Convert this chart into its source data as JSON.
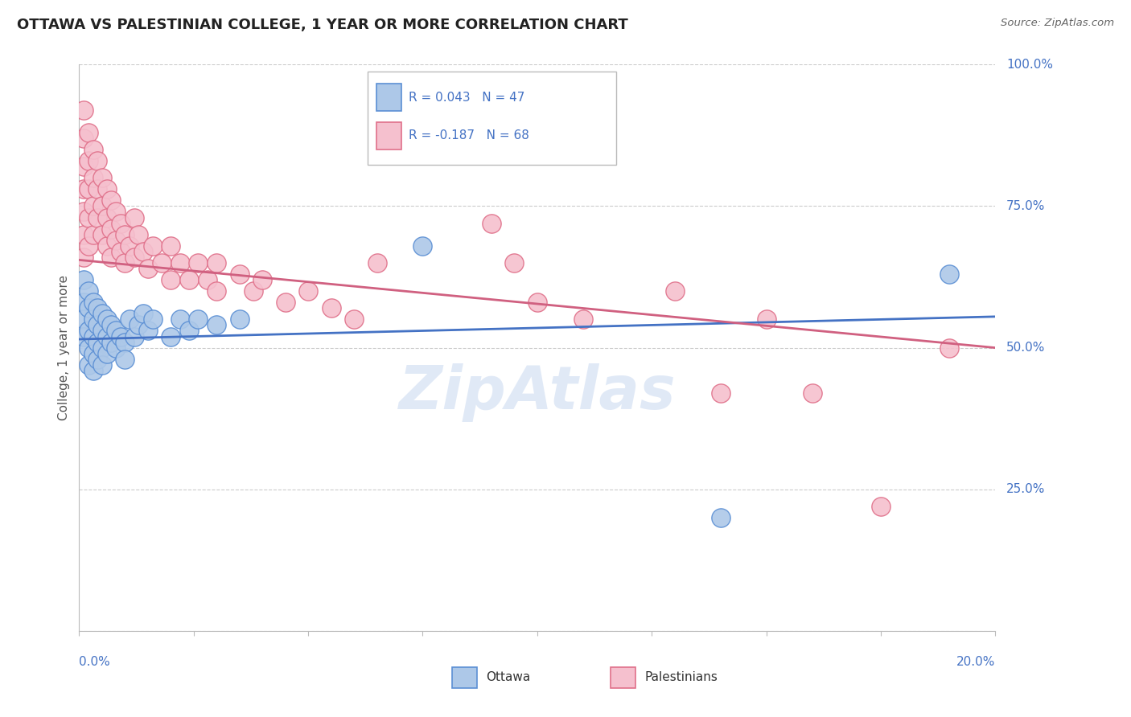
{
  "title": "OTTAWA VS PALESTINIAN COLLEGE, 1 YEAR OR MORE CORRELATION CHART",
  "source": "Source: ZipAtlas.com",
  "ylabel": "College, 1 year or more",
  "legend_ottawa": "Ottawa",
  "legend_palestinians": "Palestinians",
  "R_ottawa": 0.043,
  "N_ottawa": 47,
  "R_palestinians": -0.187,
  "N_palestinians": 68,
  "ottawa_color": "#adc8e8",
  "ottawa_edge_color": "#5b8fd4",
  "palestinian_color": "#f5c0ce",
  "palestinian_edge_color": "#e0708a",
  "ottawa_line_color": "#4472c4",
  "palestinian_line_color": "#d06080",
  "watermark": "ZipAtlas",
  "xlim": [
    0.0,
    0.2
  ],
  "ylim": [
    0.0,
    1.0
  ],
  "grid_color": "#cccccc",
  "x_ticks": [
    0.0,
    0.025,
    0.05,
    0.075,
    0.1,
    0.125,
    0.15,
    0.175,
    0.2
  ],
  "y_ticks": [
    0.0,
    0.25,
    0.5,
    0.75,
    1.0
  ],
  "ottawa_points": [
    [
      0.001,
      0.62
    ],
    [
      0.001,
      0.58
    ],
    [
      0.001,
      0.55
    ],
    [
      0.001,
      0.52
    ],
    [
      0.002,
      0.6
    ],
    [
      0.002,
      0.57
    ],
    [
      0.002,
      0.53
    ],
    [
      0.002,
      0.5
    ],
    [
      0.002,
      0.47
    ],
    [
      0.003,
      0.58
    ],
    [
      0.003,
      0.55
    ],
    [
      0.003,
      0.52
    ],
    [
      0.003,
      0.49
    ],
    [
      0.003,
      0.46
    ],
    [
      0.004,
      0.57
    ],
    [
      0.004,
      0.54
    ],
    [
      0.004,
      0.51
    ],
    [
      0.004,
      0.48
    ],
    [
      0.005,
      0.56
    ],
    [
      0.005,
      0.53
    ],
    [
      0.005,
      0.5
    ],
    [
      0.005,
      0.47
    ],
    [
      0.006,
      0.55
    ],
    [
      0.006,
      0.52
    ],
    [
      0.006,
      0.49
    ],
    [
      0.007,
      0.54
    ],
    [
      0.007,
      0.51
    ],
    [
      0.008,
      0.53
    ],
    [
      0.008,
      0.5
    ],
    [
      0.009,
      0.52
    ],
    [
      0.01,
      0.51
    ],
    [
      0.01,
      0.48
    ],
    [
      0.011,
      0.55
    ],
    [
      0.012,
      0.52
    ],
    [
      0.013,
      0.54
    ],
    [
      0.014,
      0.56
    ],
    [
      0.015,
      0.53
    ],
    [
      0.016,
      0.55
    ],
    [
      0.02,
      0.52
    ],
    [
      0.022,
      0.55
    ],
    [
      0.024,
      0.53
    ],
    [
      0.026,
      0.55
    ],
    [
      0.03,
      0.54
    ],
    [
      0.035,
      0.55
    ],
    [
      0.075,
      0.68
    ],
    [
      0.14,
      0.2
    ],
    [
      0.19,
      0.63
    ]
  ],
  "palestinian_points": [
    [
      0.001,
      0.92
    ],
    [
      0.001,
      0.87
    ],
    [
      0.001,
      0.82
    ],
    [
      0.001,
      0.78
    ],
    [
      0.001,
      0.74
    ],
    [
      0.001,
      0.7
    ],
    [
      0.001,
      0.66
    ],
    [
      0.002,
      0.88
    ],
    [
      0.002,
      0.83
    ],
    [
      0.002,
      0.78
    ],
    [
      0.002,
      0.73
    ],
    [
      0.002,
      0.68
    ],
    [
      0.003,
      0.85
    ],
    [
      0.003,
      0.8
    ],
    [
      0.003,
      0.75
    ],
    [
      0.003,
      0.7
    ],
    [
      0.004,
      0.83
    ],
    [
      0.004,
      0.78
    ],
    [
      0.004,
      0.73
    ],
    [
      0.005,
      0.8
    ],
    [
      0.005,
      0.75
    ],
    [
      0.005,
      0.7
    ],
    [
      0.006,
      0.78
    ],
    [
      0.006,
      0.73
    ],
    [
      0.006,
      0.68
    ],
    [
      0.007,
      0.76
    ],
    [
      0.007,
      0.71
    ],
    [
      0.007,
      0.66
    ],
    [
      0.008,
      0.74
    ],
    [
      0.008,
      0.69
    ],
    [
      0.009,
      0.72
    ],
    [
      0.009,
      0.67
    ],
    [
      0.01,
      0.7
    ],
    [
      0.01,
      0.65
    ],
    [
      0.011,
      0.68
    ],
    [
      0.012,
      0.73
    ],
    [
      0.012,
      0.66
    ],
    [
      0.013,
      0.7
    ],
    [
      0.014,
      0.67
    ],
    [
      0.015,
      0.64
    ],
    [
      0.016,
      0.68
    ],
    [
      0.018,
      0.65
    ],
    [
      0.02,
      0.68
    ],
    [
      0.02,
      0.62
    ],
    [
      0.022,
      0.65
    ],
    [
      0.024,
      0.62
    ],
    [
      0.026,
      0.65
    ],
    [
      0.028,
      0.62
    ],
    [
      0.03,
      0.65
    ],
    [
      0.03,
      0.6
    ],
    [
      0.035,
      0.63
    ],
    [
      0.038,
      0.6
    ],
    [
      0.04,
      0.62
    ],
    [
      0.045,
      0.58
    ],
    [
      0.05,
      0.6
    ],
    [
      0.055,
      0.57
    ],
    [
      0.06,
      0.55
    ],
    [
      0.065,
      0.65
    ],
    [
      0.09,
      0.72
    ],
    [
      0.095,
      0.65
    ],
    [
      0.1,
      0.58
    ],
    [
      0.11,
      0.55
    ],
    [
      0.13,
      0.6
    ],
    [
      0.14,
      0.42
    ],
    [
      0.15,
      0.55
    ],
    [
      0.16,
      0.42
    ],
    [
      0.175,
      0.22
    ],
    [
      0.19,
      0.5
    ]
  ]
}
